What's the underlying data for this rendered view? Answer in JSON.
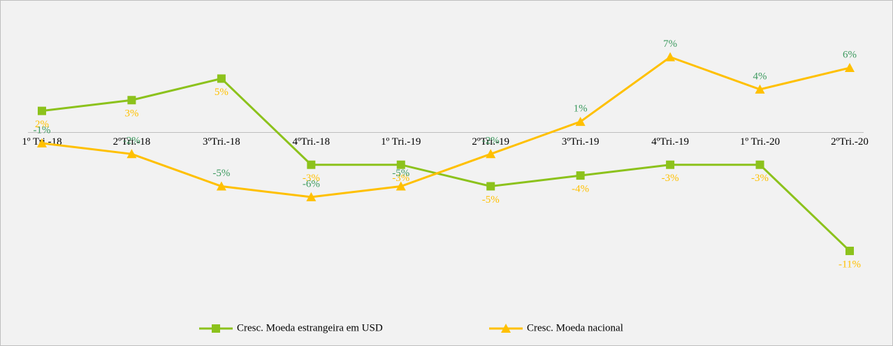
{
  "chart_data": {
    "type": "line",
    "categories": [
      "1º Tri.-18",
      "2ºTri.-18",
      "3ºTri.-18",
      "4ºTri.-18",
      "1º Tri.-19",
      "2ºTri.-19",
      "3ºTri.-19",
      "4ºTri.-19",
      "1º Tri.-20",
      "2ºTri.-20"
    ],
    "series": [
      {
        "name": "Cresc. Moeda estrangeira em USD",
        "color": "#8cc21c",
        "marker": "square",
        "label_color": "#ffc000",
        "label_position": "below",
        "values": [
          2,
          3,
          5,
          -3,
          -3,
          -5,
          -4,
          -3,
          -3,
          -11
        ],
        "value_labels": [
          "2%",
          "3%",
          "5%",
          "-3%",
          "-3%",
          "-5%",
          "-4%",
          "-3%",
          "-3%",
          "-11%"
        ]
      },
      {
        "name": "Cresc. Moeda nacional",
        "color": "#ffc000",
        "marker": "triangle",
        "label_color": "#3d9a5f",
        "label_position": "above",
        "values": [
          -1,
          -2,
          -5,
          -6,
          -5,
          -2,
          1,
          7,
          4,
          6
        ],
        "value_labels": [
          "-1%",
          "-2%",
          "-5%",
          "-6%",
          "-5%",
          "-2%",
          "1%",
          "7%",
          "4%",
          "6%"
        ]
      }
    ],
    "ylim": [
      -16,
      11
    ],
    "yticks": [
      0
    ],
    "legend": "bottom"
  }
}
